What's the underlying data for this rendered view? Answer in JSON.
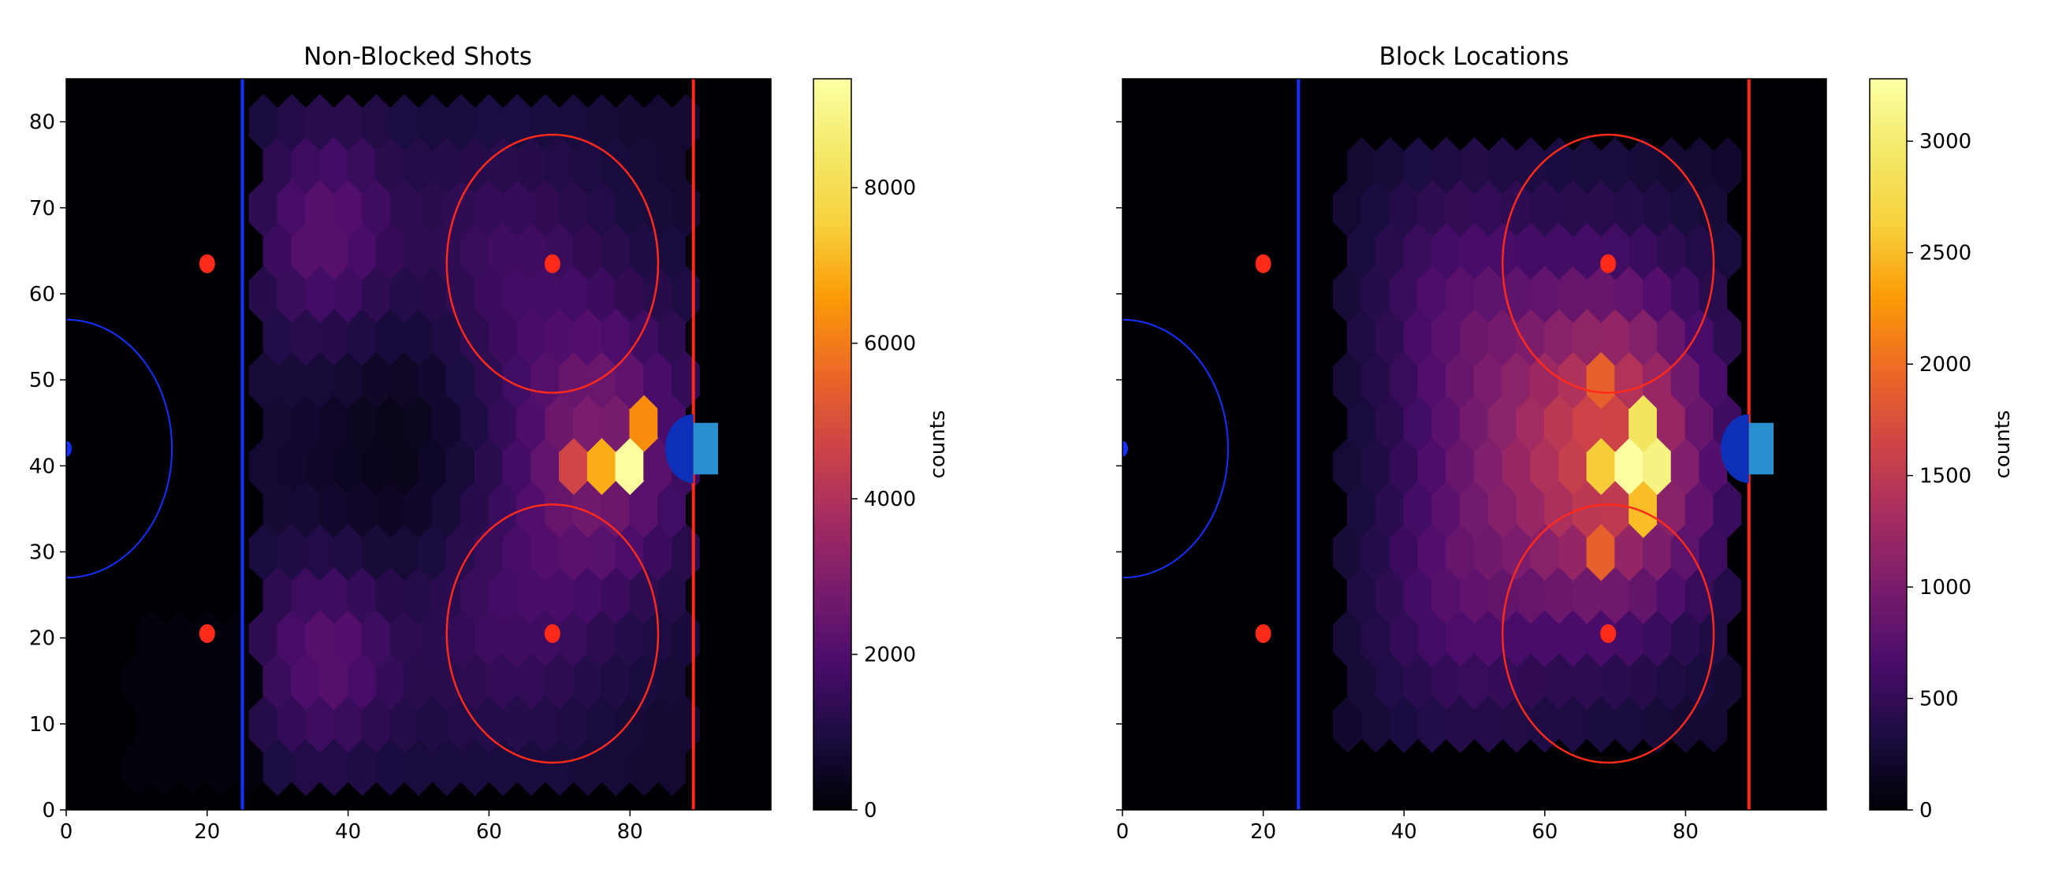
{
  "chart_data": [
    {
      "type": "heatmap",
      "subtype": "hexbin",
      "title": "Non-Blocked Shots",
      "xlabel": "",
      "ylabel": "",
      "xlim": [
        0,
        100
      ],
      "ylim": [
        0,
        85
      ],
      "x_ticks": [
        0,
        20,
        40,
        60,
        80
      ],
      "y_ticks": [
        0,
        10,
        20,
        30,
        40,
        50,
        60,
        70,
        80
      ],
      "grid": false,
      "colormap": "inferno",
      "colorbar": {
        "label": "counts",
        "range": [
          0,
          9400
        ],
        "ticks": [
          0,
          2000,
          4000,
          6000,
          8000
        ]
      },
      "hot_spots": [
        {
          "x": 79,
          "y": 42,
          "count": 9300
        },
        {
          "x": 75,
          "y": 42,
          "count": 6900
        },
        {
          "x": 81,
          "y": 47,
          "count": 6300
        },
        {
          "x": 77,
          "y": 38,
          "count": 5200
        },
        {
          "x": 71,
          "y": 42,
          "count": 4700
        },
        {
          "x": 35,
          "y": 67,
          "count": 2100
        },
        {
          "x": 35,
          "y": 18,
          "count": 2100
        }
      ],
      "rink": {
        "blue_line_x": 25,
        "goal_line_x": 89,
        "faceoff_dots": [
          [
            20,
            63.5
          ],
          [
            69,
            63.5
          ],
          [
            20,
            20.5
          ],
          [
            69,
            20.5
          ]
        ],
        "faceoff_circles": [
          {
            "x": 69,
            "y": 63.5,
            "r": 15
          },
          {
            "x": 69,
            "y": 20.5,
            "r": 15
          }
        ],
        "center_circle": {
          "x": 0,
          "y": 42,
          "r": 15
        },
        "crease": {
          "x": 89,
          "y": 42,
          "r": 4
        },
        "net": {
          "x0": 89,
          "x1": 92.5,
          "y0": 39,
          "y1": 45
        }
      },
      "colors": {
        "rink_line_red": "#ff2a1a",
        "rink_line_blue": "#1530ff",
        "net": "#2a8fd0",
        "crease": "#0d30b8"
      }
    },
    {
      "type": "heatmap",
      "subtype": "hexbin",
      "title": "Block Locations",
      "xlabel": "",
      "ylabel": "",
      "xlim": [
        0,
        100
      ],
      "ylim": [
        0,
        85
      ],
      "x_ticks": [
        0,
        20,
        40,
        60,
        80
      ],
      "y_ticks": [
        0,
        10,
        20,
        30,
        40,
        50,
        60,
        70,
        80
      ],
      "grid": false,
      "colormap": "inferno",
      "colorbar": {
        "label": "counts",
        "range": [
          0,
          3280
        ],
        "ticks": [
          0,
          500,
          1000,
          1500,
          2000,
          2500,
          3000
        ]
      },
      "hot_spots": [
        {
          "x": 71,
          "y": 42,
          "count": 3250
        },
        {
          "x": 75,
          "y": 42,
          "count": 3100
        },
        {
          "x": 73,
          "y": 47,
          "count": 2900
        },
        {
          "x": 67,
          "y": 42,
          "count": 2600
        },
        {
          "x": 73,
          "y": 37,
          "count": 2500
        },
        {
          "x": 67,
          "y": 32,
          "count": 1900
        },
        {
          "x": 67,
          "y": 52,
          "count": 1900
        }
      ],
      "rink": {
        "blue_line_x": 25,
        "goal_line_x": 89,
        "faceoff_dots": [
          [
            20,
            63.5
          ],
          [
            69,
            63.5
          ],
          [
            20,
            20.5
          ],
          [
            69,
            20.5
          ]
        ],
        "faceoff_circles": [
          {
            "x": 69,
            "y": 63.5,
            "r": 15
          },
          {
            "x": 69,
            "y": 20.5,
            "r": 15
          }
        ],
        "center_circle": {
          "x": 0,
          "y": 42,
          "r": 15
        },
        "crease": {
          "x": 89,
          "y": 42,
          "r": 4
        },
        "net": {
          "x0": 89,
          "x1": 92.5,
          "y0": 39,
          "y1": 45
        }
      },
      "colors": {
        "rink_line_red": "#ff2a1a",
        "rink_line_blue": "#1530ff",
        "net": "#2a8fd0",
        "crease": "#0d30b8"
      }
    }
  ]
}
